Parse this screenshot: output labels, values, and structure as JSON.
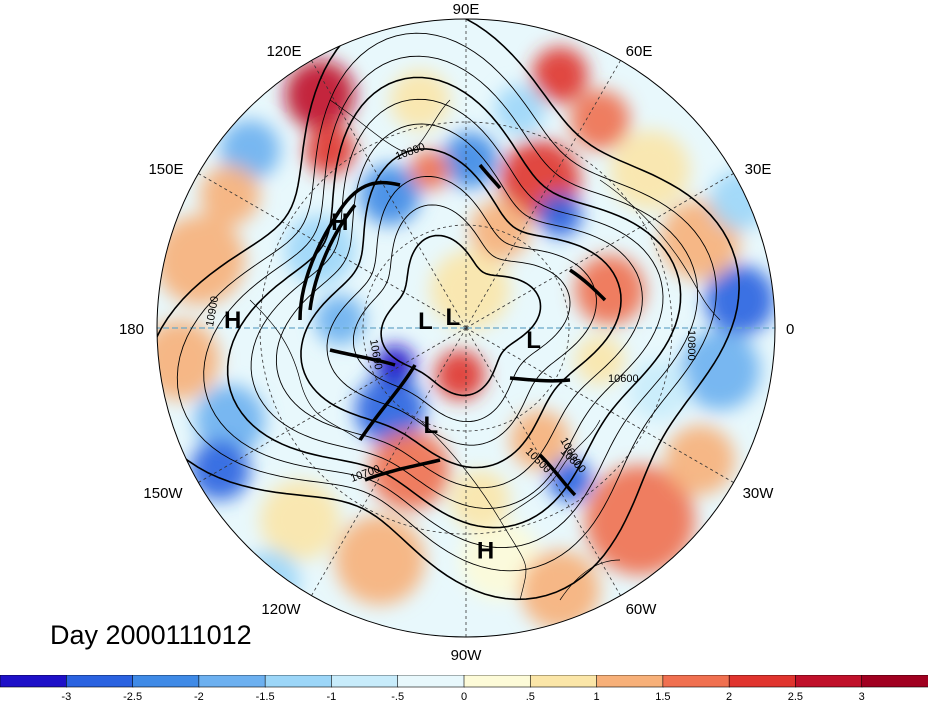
{
  "date_label": "Day 2000111012",
  "longitude_labels": {
    "lon_90E": "90E",
    "lon_60E": "60E",
    "lon_30E": "30E",
    "lon_0": "0",
    "lon_30W": "30W",
    "lon_60W": "60W",
    "lon_90W": "90W",
    "lon_120W": "120W",
    "lon_150W": "150W",
    "lon_180": "180",
    "lon_150E": "150E",
    "lon_120E": "120E"
  },
  "pressure_centers": [
    {
      "label": "H",
      "lon": 140,
      "lat": 42
    },
    {
      "label": "H",
      "lon": 178,
      "lat": 22
    },
    {
      "label": "H",
      "lon": -85,
      "lat": 25
    },
    {
      "label": "L",
      "lon": 140,
      "lat": 85
    },
    {
      "label": "L",
      "lon": 170,
      "lat": 78
    },
    {
      "label": "L",
      "lon": -10,
      "lat": 70
    },
    {
      "label": "L",
      "lon": -110,
      "lat": 60
    }
  ],
  "contour_labels": [
    "10800",
    "10600",
    "10900",
    "10800",
    "10600",
    "10600",
    "10500",
    "10700",
    "10800"
  ],
  "colorbar": {
    "colors": [
      "#1e10c8",
      "#2a62e0",
      "#3f8ae6",
      "#6cb0f0",
      "#9cd6f8",
      "#c8ecfb",
      "#e8f8fc",
      "#fdfbd8",
      "#fbe6a8",
      "#f7b079",
      "#f07050",
      "#e0342e",
      "#c0102a",
      "#a00020"
    ],
    "ticks": [
      "-3",
      "-2.5",
      "-2",
      "-1.5",
      "-1",
      "-.5",
      "0",
      ".5",
      "1",
      "1.5",
      "2",
      "2.5",
      "3"
    ]
  },
  "map_colors": {
    "coast": "#000000",
    "contour": "#000000"
  }
}
